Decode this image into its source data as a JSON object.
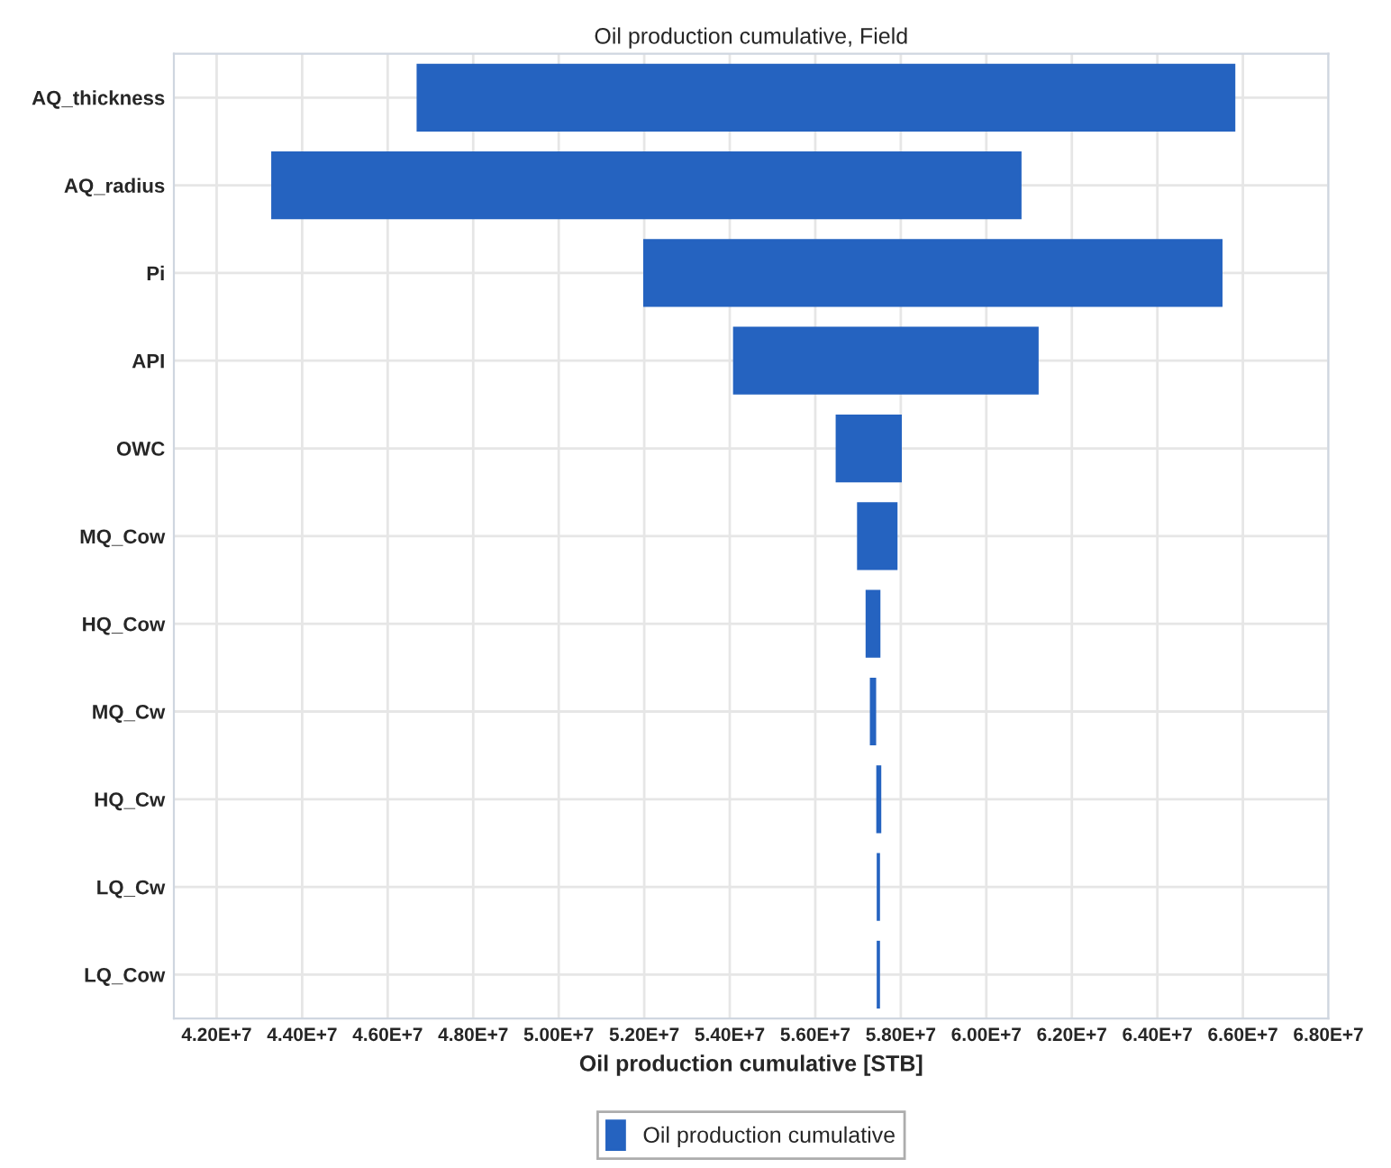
{
  "chart_data": {
    "type": "bar",
    "orientation": "horizontal",
    "title": "Oil production cumulative, Field",
    "xlabel": "Oil production cumulative [STB]",
    "categories": [
      "AQ_thickness",
      "AQ_radius",
      "Pi",
      "API",
      "OWC",
      "MQ_Cow",
      "HQ_Cow",
      "MQ_Cw",
      "HQ_Cw",
      "LQ_Cw",
      "LQ_Cow"
    ],
    "series": [
      {
        "name": "Oil production cumulative",
        "color": "#2563c0",
        "base": [
          46700000,
          43300000,
          52000000,
          54100000,
          56500000,
          57000000,
          57200000,
          57300000,
          57450000,
          57460000,
          57460000
        ],
        "values": [
          19100000,
          17500000,
          13500000,
          7100000,
          1500000,
          900000,
          300000,
          100000,
          70000,
          30000,
          30000
        ]
      }
    ],
    "xlim": [
      41000000,
      68000000
    ],
    "xticks": [
      {
        "value": 42000000,
        "label": "4.20E+7"
      },
      {
        "value": 44000000,
        "label": "4.40E+7"
      },
      {
        "value": 46000000,
        "label": "4.60E+7"
      },
      {
        "value": 48000000,
        "label": "4.80E+7"
      },
      {
        "value": 50000000,
        "label": "5.00E+7"
      },
      {
        "value": 52000000,
        "label": "5.20E+7"
      },
      {
        "value": 54000000,
        "label": "5.40E+7"
      },
      {
        "value": 56000000,
        "label": "5.60E+7"
      },
      {
        "value": 58000000,
        "label": "5.80E+7"
      },
      {
        "value": 60000000,
        "label": "6.00E+7"
      },
      {
        "value": 62000000,
        "label": "6.20E+7"
      },
      {
        "value": 64000000,
        "label": "6.40E+7"
      },
      {
        "value": 66000000,
        "label": "6.60E+7"
      },
      {
        "value": 68000000,
        "label": "6.80E+7"
      }
    ],
    "grid": true,
    "legend": "bottom"
  }
}
